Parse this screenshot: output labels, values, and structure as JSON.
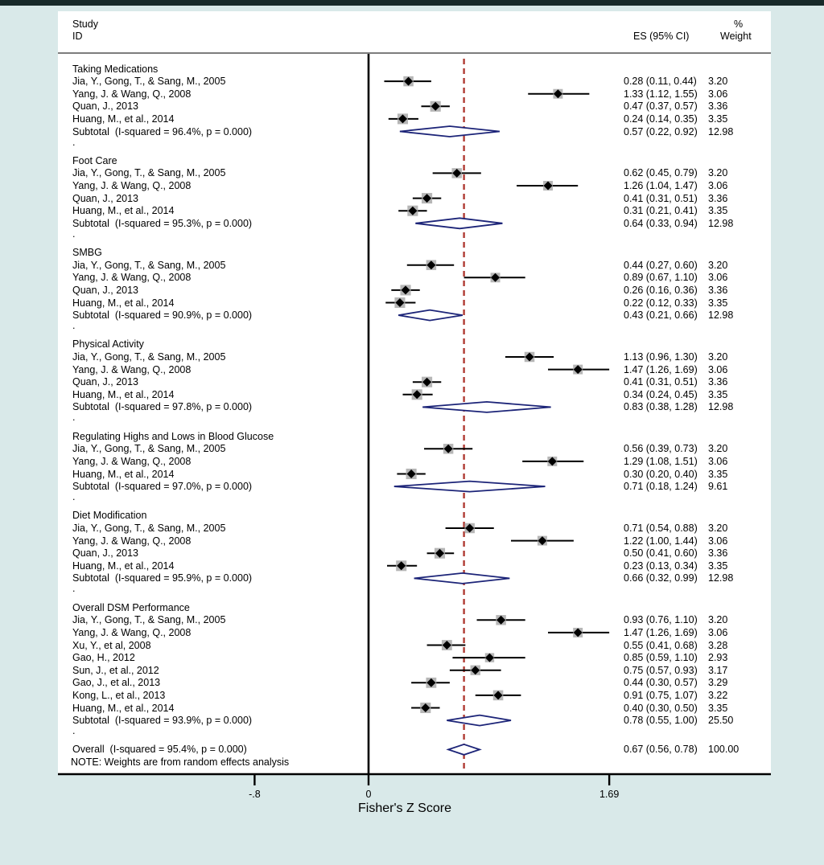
{
  "window": {
    "background": "#d9e9e9",
    "top_bar_color": "#182a2a",
    "plot_background": "#ffffff"
  },
  "chart_data": {
    "type": "forest",
    "columns": {
      "study_header_line1": "Study",
      "study_header_line2": "ID",
      "es_header": "ES (95% CI)",
      "weight_header_line1": "%",
      "weight_header_line2": "Weight"
    },
    "axis": {
      "label": "Fisher's Z Score",
      "ticks": [
        {
          "value": -0.8,
          "label": "-.8"
        },
        {
          "value": 0,
          "label": "0"
        },
        {
          "value": 1.69,
          "label": "1.69"
        }
      ],
      "zero_line": 0,
      "ref_line": 0.67
    },
    "note": "NOTE: Weights are from random effects analysis",
    "colors": {
      "ci_line": "#000000",
      "marker": "#000000",
      "weight_box": "#a9a9a9",
      "diamond": "#1c2478",
      "ref_line": "#b03b33",
      "axis_line": "#000000"
    },
    "groups": [
      {
        "name": "Taking Medications",
        "studies": [
          {
            "label": "Jia, Y., Gong, T., & Sang, M., 2005",
            "es": 0.28,
            "lo": 0.11,
            "hi": 0.44,
            "es_text": "0.28 (0.11, 0.44)",
            "weight": 3.2,
            "weight_text": "3.20"
          },
          {
            "label": "Yang, J. & Wang, Q., 2008",
            "es": 1.33,
            "lo": 1.12,
            "hi": 1.55,
            "es_text": "1.33 (1.12, 1.55)",
            "weight": 3.06,
            "weight_text": "3.06"
          },
          {
            "label": "Quan, J., 2013",
            "es": 0.47,
            "lo": 0.37,
            "hi": 0.57,
            "es_text": "0.47 (0.37, 0.57)",
            "weight": 3.36,
            "weight_text": "3.36"
          },
          {
            "label": "Huang, M., et al., 2014",
            "es": 0.24,
            "lo": 0.14,
            "hi": 0.35,
            "es_text": "0.24 (0.14, 0.35)",
            "weight": 3.35,
            "weight_text": "3.35"
          }
        ],
        "subtotal": {
          "label": "Subtotal  (I-squared = 96.4%, p = 0.000)",
          "es": 0.57,
          "lo": 0.22,
          "hi": 0.92,
          "es_text": "0.57 (0.22, 0.92)",
          "weight_text": "12.98"
        }
      },
      {
        "name": "Foot Care",
        "studies": [
          {
            "label": "Jia, Y., Gong, T., & Sang, M., 2005",
            "es": 0.62,
            "lo": 0.45,
            "hi": 0.79,
            "es_text": "0.62 (0.45, 0.79)",
            "weight": 3.2,
            "weight_text": "3.20"
          },
          {
            "label": "Yang, J. & Wang, Q., 2008",
            "es": 1.26,
            "lo": 1.04,
            "hi": 1.47,
            "es_text": "1.26 (1.04, 1.47)",
            "weight": 3.06,
            "weight_text": "3.06"
          },
          {
            "label": "Quan, J., 2013",
            "es": 0.41,
            "lo": 0.31,
            "hi": 0.51,
            "es_text": "0.41 (0.31, 0.51)",
            "weight": 3.36,
            "weight_text": "3.36"
          },
          {
            "label": "Huang, M., et al., 2014",
            "es": 0.31,
            "lo": 0.21,
            "hi": 0.41,
            "es_text": "0.31 (0.21, 0.41)",
            "weight": 3.35,
            "weight_text": "3.35"
          }
        ],
        "subtotal": {
          "label": "Subtotal  (I-squared = 95.3%, p = 0.000)",
          "es": 0.64,
          "lo": 0.33,
          "hi": 0.94,
          "es_text": "0.64 (0.33, 0.94)",
          "weight_text": "12.98"
        }
      },
      {
        "name": "SMBG",
        "studies": [
          {
            "label": "Jia, Y., Gong, T., & Sang, M., 2005",
            "es": 0.44,
            "lo": 0.27,
            "hi": 0.6,
            "es_text": "0.44 (0.27, 0.60)",
            "weight": 3.2,
            "weight_text": "3.20"
          },
          {
            "label": "Yang, J. & Wang, Q., 2008",
            "es": 0.89,
            "lo": 0.67,
            "hi": 1.1,
            "es_text": "0.89 (0.67, 1.10)",
            "weight": 3.06,
            "weight_text": "3.06"
          },
          {
            "label": "Quan, J., 2013",
            "es": 0.26,
            "lo": 0.16,
            "hi": 0.36,
            "es_text": "0.26 (0.16, 0.36)",
            "weight": 3.36,
            "weight_text": "3.36"
          },
          {
            "label": "Huang, M., et al., 2014",
            "es": 0.22,
            "lo": 0.12,
            "hi": 0.33,
            "es_text": "0.22 (0.12, 0.33)",
            "weight": 3.35,
            "weight_text": "3.35"
          }
        ],
        "subtotal": {
          "label": "Subtotal  (I-squared = 90.9%, p = 0.000)",
          "es": 0.43,
          "lo": 0.21,
          "hi": 0.66,
          "es_text": "0.43 (0.21, 0.66)",
          "weight_text": "12.98"
        }
      },
      {
        "name": "Physical Activity",
        "studies": [
          {
            "label": "Jia, Y., Gong, T., & Sang, M., 2005",
            "es": 1.13,
            "lo": 0.96,
            "hi": 1.3,
            "es_text": "1.13 (0.96, 1.30)",
            "weight": 3.2,
            "weight_text": "3.20"
          },
          {
            "label": "Yang, J. & Wang, Q., 2008",
            "es": 1.47,
            "lo": 1.26,
            "hi": 1.69,
            "es_text": "1.47 (1.26, 1.69)",
            "weight": 3.06,
            "weight_text": "3.06"
          },
          {
            "label": "Quan, J., 2013",
            "es": 0.41,
            "lo": 0.31,
            "hi": 0.51,
            "es_text": "0.41 (0.31, 0.51)",
            "weight": 3.36,
            "weight_text": "3.36"
          },
          {
            "label": "Huang, M., et al., 2014",
            "es": 0.34,
            "lo": 0.24,
            "hi": 0.45,
            "es_text": "0.34 (0.24, 0.45)",
            "weight": 3.35,
            "weight_text": "3.35"
          }
        ],
        "subtotal": {
          "label": "Subtotal  (I-squared = 97.8%, p = 0.000)",
          "es": 0.83,
          "lo": 0.38,
          "hi": 1.28,
          "es_text": "0.83 (0.38, 1.28)",
          "weight_text": "12.98"
        }
      },
      {
        "name": "Regulating Highs and Lows in Blood Glucose",
        "studies": [
          {
            "label": "Jia, Y., Gong, T., & Sang, M., 2005",
            "es": 0.56,
            "lo": 0.39,
            "hi": 0.73,
            "es_text": "0.56 (0.39, 0.73)",
            "weight": 3.2,
            "weight_text": "3.20"
          },
          {
            "label": "Yang, J. & Wang, Q., 2008",
            "es": 1.29,
            "lo": 1.08,
            "hi": 1.51,
            "es_text": "1.29 (1.08, 1.51)",
            "weight": 3.06,
            "weight_text": "3.06"
          },
          {
            "label": "Huang, M., et al., 2014",
            "es": 0.3,
            "lo": 0.2,
            "hi": 0.4,
            "es_text": "0.30 (0.20, 0.40)",
            "weight": 3.35,
            "weight_text": "3.35"
          }
        ],
        "subtotal": {
          "label": "Subtotal  (I-squared = 97.0%, p = 0.000)",
          "es": 0.71,
          "lo": 0.18,
          "hi": 1.24,
          "es_text": "0.71 (0.18, 1.24)",
          "weight_text": "9.61"
        }
      },
      {
        "name": "Diet Modification",
        "studies": [
          {
            "label": "Jia, Y., Gong, T., & Sang, M., 2005",
            "es": 0.71,
            "lo": 0.54,
            "hi": 0.88,
            "es_text": "0.71 (0.54, 0.88)",
            "weight": 3.2,
            "weight_text": "3.20"
          },
          {
            "label": "Yang, J. & Wang, Q., 2008",
            "es": 1.22,
            "lo": 1.0,
            "hi": 1.44,
            "es_text": "1.22 (1.00, 1.44)",
            "weight": 3.06,
            "weight_text": "3.06"
          },
          {
            "label": "Quan, J., 2013",
            "es": 0.5,
            "lo": 0.41,
            "hi": 0.6,
            "es_text": "0.50 (0.41, 0.60)",
            "weight": 3.36,
            "weight_text": "3.36"
          },
          {
            "label": "Huang, M., et al., 2014",
            "es": 0.23,
            "lo": 0.13,
            "hi": 0.34,
            "es_text": "0.23 (0.13, 0.34)",
            "weight": 3.35,
            "weight_text": "3.35"
          }
        ],
        "subtotal": {
          "label": "Subtotal  (I-squared = 95.9%, p = 0.000)",
          "es": 0.66,
          "lo": 0.32,
          "hi": 0.99,
          "es_text": "0.66 (0.32, 0.99)",
          "weight_text": "12.98"
        }
      },
      {
        "name": "Overall DSM Performance",
        "studies": [
          {
            "label": "Jia, Y., Gong, T., & Sang, M., 2005",
            "es": 0.93,
            "lo": 0.76,
            "hi": 1.1,
            "es_text": "0.93 (0.76, 1.10)",
            "weight": 3.2,
            "weight_text": "3.20"
          },
          {
            "label": "Yang, J. & Wang, Q., 2008",
            "es": 1.47,
            "lo": 1.26,
            "hi": 1.69,
            "es_text": "1.47 (1.26, 1.69)",
            "weight": 3.06,
            "weight_text": "3.06"
          },
          {
            "label": "Xu, Y., et al, 2008",
            "es": 0.55,
            "lo": 0.41,
            "hi": 0.68,
            "es_text": "0.55 (0.41, 0.68)",
            "weight": 3.28,
            "weight_text": "3.28"
          },
          {
            "label": "Gao, H., 2012",
            "es": 0.85,
            "lo": 0.59,
            "hi": 1.1,
            "es_text": "0.85 (0.59, 1.10)",
            "weight": 2.93,
            "weight_text": "2.93"
          },
          {
            "label": "Sun, J., et al., 2012",
            "es": 0.75,
            "lo": 0.57,
            "hi": 0.93,
            "es_text": "0.75 (0.57, 0.93)",
            "weight": 3.17,
            "weight_text": "3.17"
          },
          {
            "label": "Gao, J., et al., 2013",
            "es": 0.44,
            "lo": 0.3,
            "hi": 0.57,
            "es_text": "0.44 (0.30, 0.57)",
            "weight": 3.29,
            "weight_text": "3.29"
          },
          {
            "label": "Kong, L., et al., 2013",
            "es": 0.91,
            "lo": 0.75,
            "hi": 1.07,
            "es_text": "0.91 (0.75, 1.07)",
            "weight": 3.22,
            "weight_text": "3.22"
          },
          {
            "label": "Huang, M., et al., 2014",
            "es": 0.4,
            "lo": 0.3,
            "hi": 0.5,
            "es_text": "0.40 (0.30, 0.50)",
            "weight": 3.35,
            "weight_text": "3.35"
          }
        ],
        "subtotal": {
          "label": "Subtotal  (I-squared = 93.9%, p = 0.000)",
          "es": 0.78,
          "lo": 0.55,
          "hi": 1.0,
          "es_text": "0.78 (0.55, 1.00)",
          "weight_text": "25.50"
        }
      }
    ],
    "overall": {
      "label": "Overall  (I-squared = 95.4%, p = 0.000)",
      "es": 0.67,
      "lo": 0.56,
      "hi": 0.78,
      "es_text": "0.67 (0.56, 0.78)",
      "weight_text": "100.00"
    }
  }
}
